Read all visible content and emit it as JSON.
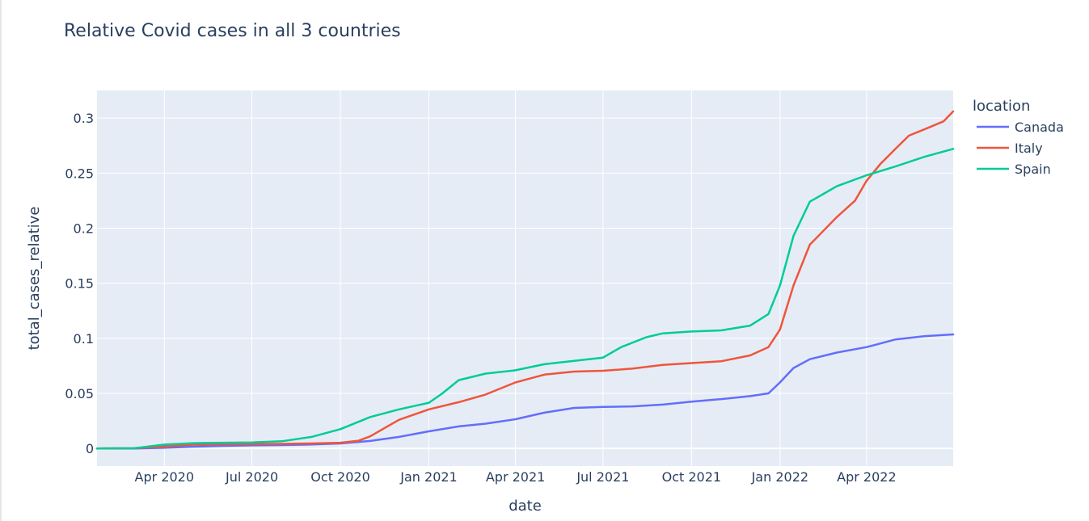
{
  "chart_data": {
    "type": "line",
    "title": "Relative Covid cases in all 3 countries",
    "xlabel": "date",
    "ylabel": "total_cases_relative",
    "legend_title": "location",
    "legend_position": "right",
    "grid": true,
    "xlim": [
      "2020-01-22",
      "2022-06-30"
    ],
    "ylim": [
      -0.016,
      0.325
    ],
    "x_ticks": [
      {
        "date": "2020-04-01",
        "label": "Apr 2020"
      },
      {
        "date": "2020-07-01",
        "label": "Jul 2020"
      },
      {
        "date": "2020-10-01",
        "label": "Oct 2020"
      },
      {
        "date": "2021-01-01",
        "label": "Jan 2021"
      },
      {
        "date": "2021-04-01",
        "label": "Apr 2021"
      },
      {
        "date": "2021-07-01",
        "label": "Jul 2021"
      },
      {
        "date": "2021-10-01",
        "label": "Oct 2021"
      },
      {
        "date": "2022-01-01",
        "label": "Jan 2022"
      },
      {
        "date": "2022-04-01",
        "label": "Apr 2022"
      }
    ],
    "y_ticks": [
      {
        "value": 0,
        "label": "0"
      },
      {
        "value": 0.05,
        "label": "0.05"
      },
      {
        "value": 0.1,
        "label": "0.1"
      },
      {
        "value": 0.15,
        "label": "0.15"
      },
      {
        "value": 0.2,
        "label": "0.2"
      },
      {
        "value": 0.25,
        "label": "0.25"
      },
      {
        "value": 0.3,
        "label": "0.3"
      }
    ],
    "series": [
      {
        "name": "Canada",
        "color": "#636efa",
        "points": [
          [
            "2020-01-22",
            0
          ],
          [
            "2020-03-01",
            0
          ],
          [
            "2020-04-01",
            0.0006
          ],
          [
            "2020-05-01",
            0.0016
          ],
          [
            "2020-06-01",
            0.0023
          ],
          [
            "2020-07-01",
            0.0028
          ],
          [
            "2020-08-01",
            0.0031
          ],
          [
            "2020-09-01",
            0.0036
          ],
          [
            "2020-10-01",
            0.0045
          ],
          [
            "2020-11-01",
            0.0068
          ],
          [
            "2020-12-01",
            0.0105
          ],
          [
            "2021-01-01",
            0.0155
          ],
          [
            "2021-02-01",
            0.02
          ],
          [
            "2021-03-01",
            0.0225
          ],
          [
            "2021-04-01",
            0.0265
          ],
          [
            "2021-05-01",
            0.0325
          ],
          [
            "2021-06-01",
            0.0368
          ],
          [
            "2021-07-01",
            0.0377
          ],
          [
            "2021-08-01",
            0.0382
          ],
          [
            "2021-09-01",
            0.0398
          ],
          [
            "2021-10-01",
            0.0425
          ],
          [
            "2021-11-01",
            0.0448
          ],
          [
            "2021-12-01",
            0.0475
          ],
          [
            "2021-12-20",
            0.05
          ],
          [
            "2022-01-01",
            0.06
          ],
          [
            "2022-01-15",
            0.073
          ],
          [
            "2022-02-01",
            0.081
          ],
          [
            "2022-03-01",
            0.087
          ],
          [
            "2022-04-01",
            0.092
          ],
          [
            "2022-04-12",
            0.0945
          ],
          [
            "2022-05-01",
            0.099
          ],
          [
            "2022-06-01",
            0.102
          ],
          [
            "2022-06-30",
            0.1035
          ]
        ]
      },
      {
        "name": "Italy",
        "color": "#ef553b",
        "points": [
          [
            "2020-01-22",
            0
          ],
          [
            "2020-03-01",
            0.0002
          ],
          [
            "2020-04-01",
            0.0018
          ],
          [
            "2020-05-01",
            0.0034
          ],
          [
            "2020-06-01",
            0.0039
          ],
          [
            "2020-07-01",
            0.004
          ],
          [
            "2020-08-01",
            0.0042
          ],
          [
            "2020-09-01",
            0.0045
          ],
          [
            "2020-10-01",
            0.0052
          ],
          [
            "2020-10-20",
            0.007
          ],
          [
            "2020-11-01",
            0.011
          ],
          [
            "2020-11-15",
            0.018
          ],
          [
            "2020-12-01",
            0.026
          ],
          [
            "2021-01-01",
            0.0355
          ],
          [
            "2021-02-01",
            0.042
          ],
          [
            "2021-03-01",
            0.049
          ],
          [
            "2021-04-01",
            0.06
          ],
          [
            "2021-05-01",
            0.067
          ],
          [
            "2021-06-01",
            0.0698
          ],
          [
            "2021-07-01",
            0.0705
          ],
          [
            "2021-08-01",
            0.0725
          ],
          [
            "2021-09-01",
            0.0758
          ],
          [
            "2021-10-01",
            0.0775
          ],
          [
            "2021-11-01",
            0.0792
          ],
          [
            "2021-12-01",
            0.0845
          ],
          [
            "2021-12-20",
            0.092
          ],
          [
            "2022-01-01",
            0.108
          ],
          [
            "2022-01-15",
            0.148
          ],
          [
            "2022-02-01",
            0.185
          ],
          [
            "2022-03-01",
            0.21
          ],
          [
            "2022-03-20",
            0.225
          ],
          [
            "2022-04-01",
            0.243
          ],
          [
            "2022-04-15",
            0.258
          ],
          [
            "2022-05-01",
            0.272
          ],
          [
            "2022-05-15",
            0.284
          ],
          [
            "2022-06-01",
            0.29
          ],
          [
            "2022-06-20",
            0.297
          ],
          [
            "2022-06-30",
            0.306
          ]
        ]
      },
      {
        "name": "Spain",
        "color": "#00cc96",
        "points": [
          [
            "2020-01-22",
            0
          ],
          [
            "2020-03-01",
            0.0002
          ],
          [
            "2020-04-01",
            0.0035
          ],
          [
            "2020-05-01",
            0.0048
          ],
          [
            "2020-06-01",
            0.0052
          ],
          [
            "2020-07-01",
            0.0054
          ],
          [
            "2020-08-01",
            0.0065
          ],
          [
            "2020-09-01",
            0.0105
          ],
          [
            "2020-10-01",
            0.0175
          ],
          [
            "2020-11-01",
            0.0285
          ],
          [
            "2020-12-01",
            0.0355
          ],
          [
            "2021-01-01",
            0.0415
          ],
          [
            "2021-01-15",
            0.05
          ],
          [
            "2021-02-01",
            0.062
          ],
          [
            "2021-03-01",
            0.068
          ],
          [
            "2021-04-01",
            0.071
          ],
          [
            "2021-05-01",
            0.0765
          ],
          [
            "2021-06-01",
            0.0795
          ],
          [
            "2021-07-01",
            0.0825
          ],
          [
            "2021-07-20",
            0.092
          ],
          [
            "2021-08-15",
            0.101
          ],
          [
            "2021-09-01",
            0.1045
          ],
          [
            "2021-10-01",
            0.1062
          ],
          [
            "2021-11-01",
            0.1072
          ],
          [
            "2021-12-01",
            0.1115
          ],
          [
            "2021-12-20",
            0.122
          ],
          [
            "2022-01-01",
            0.148
          ],
          [
            "2022-01-15",
            0.193
          ],
          [
            "2022-02-01",
            0.224
          ],
          [
            "2022-03-01",
            0.238
          ],
          [
            "2022-04-01",
            0.248
          ],
          [
            "2022-05-01",
            0.256
          ],
          [
            "2022-06-01",
            0.265
          ],
          [
            "2022-06-30",
            0.272
          ]
        ]
      }
    ]
  }
}
